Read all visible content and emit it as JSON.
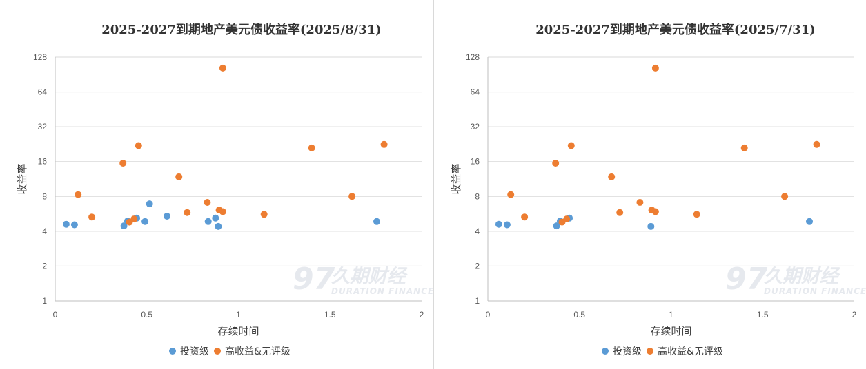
{
  "watermark": {
    "logo": "97",
    "name": "久期财经",
    "tagline": "DURATION FINANCE"
  },
  "chart_data": [
    {
      "type": "scatter",
      "title": "2025-2027到期地产美元债收益率(2025/8/31)",
      "xlabel": "存续时间",
      "ylabel": "收益率",
      "xlim": [
        0,
        2
      ],
      "ylim": [
        1,
        128
      ],
      "yscale": "log2",
      "xticks": [
        "0",
        "0.5",
        "1",
        "1.5",
        "2"
      ],
      "yticks": [
        "1",
        "2",
        "4",
        "8",
        "16",
        "32",
        "64",
        "128"
      ],
      "legend_position": "bottom",
      "series": [
        {
          "name": "投资级",
          "color": "#5b9bd5",
          "points": [
            [
              0.06,
              4.6
            ],
            [
              0.105,
              4.55
            ],
            [
              0.375,
              4.45
            ],
            [
              0.395,
              4.9
            ],
            [
              0.445,
              5.2
            ],
            [
              0.49,
              4.85
            ],
            [
              0.515,
              6.9
            ],
            [
              0.61,
              5.4
            ],
            [
              0.835,
              4.85
            ],
            [
              0.875,
              5.2
            ],
            [
              0.89,
              4.4
            ],
            [
              1.755,
              4.85
            ]
          ]
        },
        {
          "name": "高收益&无评级",
          "color": "#ed7d31",
          "points": [
            [
              0.125,
              8.3
            ],
            [
              0.2,
              5.3
            ],
            [
              0.37,
              15.5
            ],
            [
              0.405,
              4.8
            ],
            [
              0.43,
              5.1
            ],
            [
              0.455,
              22
            ],
            [
              0.675,
              11.8
            ],
            [
              0.72,
              5.8
            ],
            [
              0.83,
              7.1
            ],
            [
              0.895,
              6.1
            ],
            [
              0.915,
              5.9
            ],
            [
              0.915,
              103
            ],
            [
              1.14,
              5.6
            ],
            [
              1.4,
              21
            ],
            [
              1.62,
              8
            ],
            [
              1.795,
              22.5
            ]
          ]
        }
      ]
    },
    {
      "type": "scatter",
      "title": "2025-2027到期地产美元债收益率(2025/7/31)",
      "xlabel": "存续时间",
      "ylabel": "收益率",
      "xlim": [
        0,
        2
      ],
      "ylim": [
        1,
        128
      ],
      "yscale": "log2",
      "xticks": [
        "0",
        "0.5",
        "1",
        "1.5",
        "2"
      ],
      "yticks": [
        "1",
        "2",
        "4",
        "8",
        "16",
        "32",
        "64",
        "128"
      ],
      "legend_position": "bottom",
      "series": [
        {
          "name": "投资级",
          "color": "#5b9bd5",
          "points": [
            [
              0.06,
              4.6
            ],
            [
              0.105,
              4.55
            ],
            [
              0.375,
              4.45
            ],
            [
              0.395,
              4.9
            ],
            [
              0.445,
              5.2
            ],
            [
              0.89,
              4.4
            ],
            [
              1.755,
              4.85
            ]
          ]
        },
        {
          "name": "高收益&无评级",
          "color": "#ed7d31",
          "points": [
            [
              0.125,
              8.3
            ],
            [
              0.2,
              5.3
            ],
            [
              0.37,
              15.5
            ],
            [
              0.405,
              4.8
            ],
            [
              0.43,
              5.1
            ],
            [
              0.455,
              22
            ],
            [
              0.675,
              11.8
            ],
            [
              0.72,
              5.8
            ],
            [
              0.83,
              7.1
            ],
            [
              0.895,
              6.1
            ],
            [
              0.915,
              5.9
            ],
            [
              0.915,
              103
            ],
            [
              1.14,
              5.6
            ],
            [
              1.4,
              21
            ],
            [
              1.62,
              8
            ],
            [
              1.795,
              22.5
            ]
          ]
        }
      ]
    }
  ]
}
